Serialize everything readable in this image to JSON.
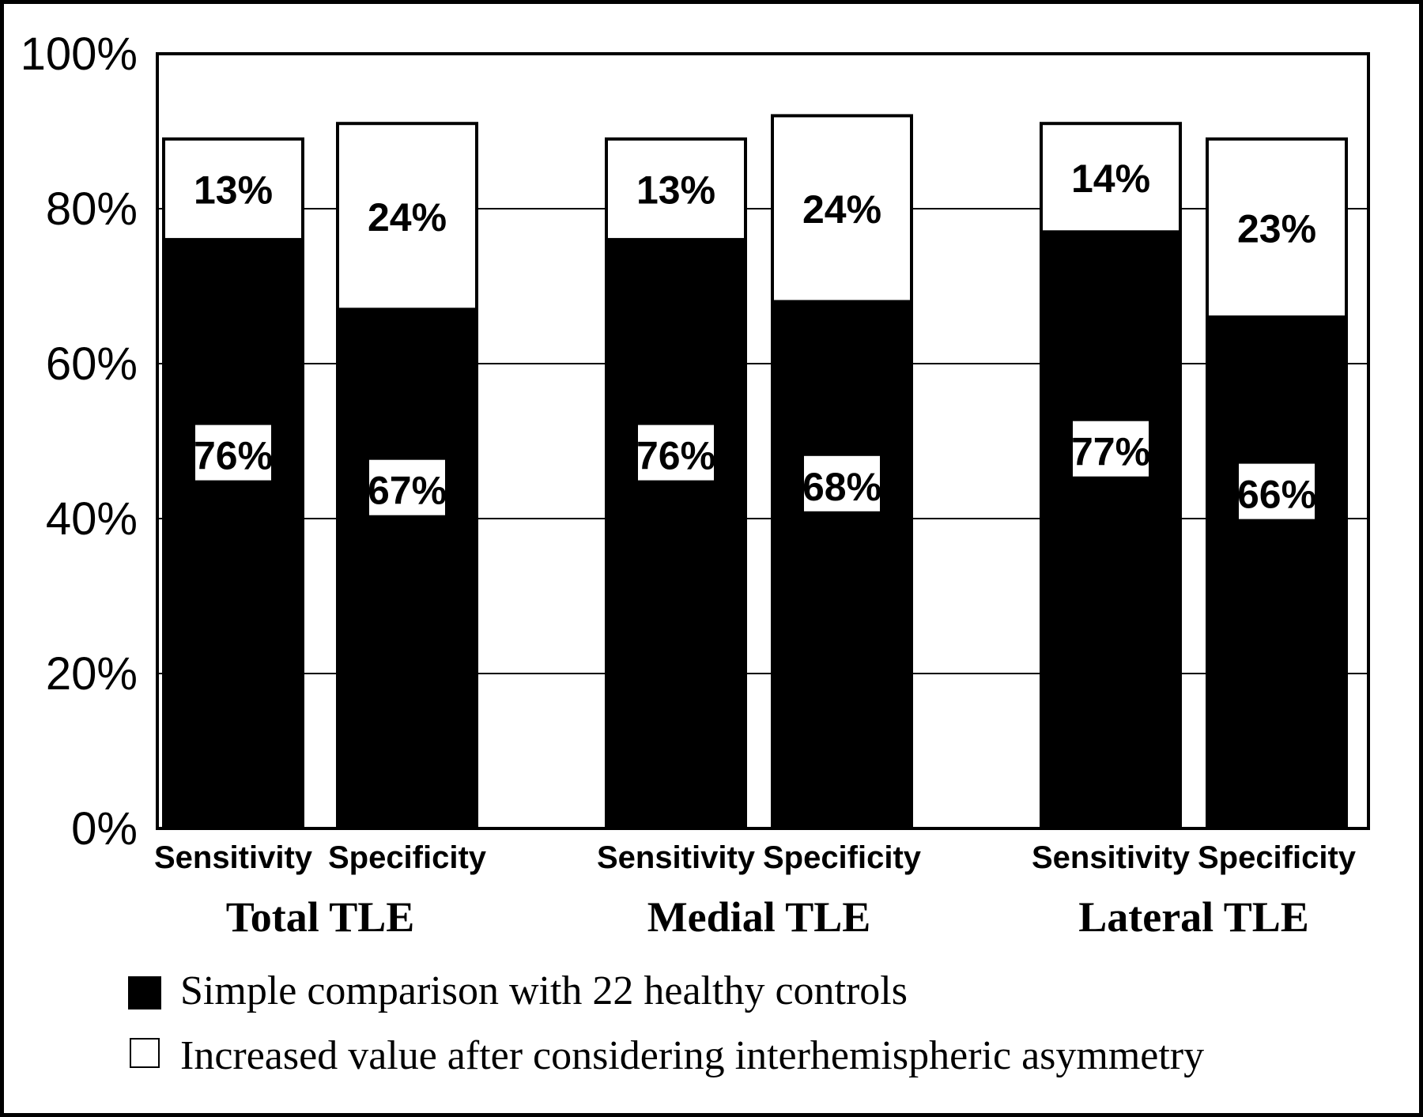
{
  "chart_data": {
    "type": "bar",
    "stacked": true,
    "yticks": [
      "0%",
      "20%",
      "40%",
      "60%",
      "80%",
      "100%"
    ],
    "ylim": [
      0,
      100
    ],
    "grid": true,
    "groups": [
      "Total TLE",
      "Medial TLE",
      "Lateral TLE"
    ],
    "categories": [
      "Sensitivity",
      "Specificity",
      "Sensitivity",
      "Specificity",
      "Sensitivity",
      "Specificity"
    ],
    "series": [
      {
        "name": "Simple comparison with 22 healthy controls",
        "color": "#000000",
        "values": [
          76,
          67,
          76,
          68,
          77,
          66
        ],
        "labels": [
          "76%",
          "67%",
          "76%",
          "68%",
          "77%",
          "66%"
        ]
      },
      {
        "name": "Increased value after considering interhemispheric asymmetry",
        "color": "#ffffff",
        "values": [
          13,
          24,
          13,
          24,
          14,
          23
        ],
        "labels": [
          "13%",
          "24%",
          "13%",
          "24%",
          "14%",
          "23%"
        ]
      }
    ],
    "legend_position": "bottom"
  }
}
